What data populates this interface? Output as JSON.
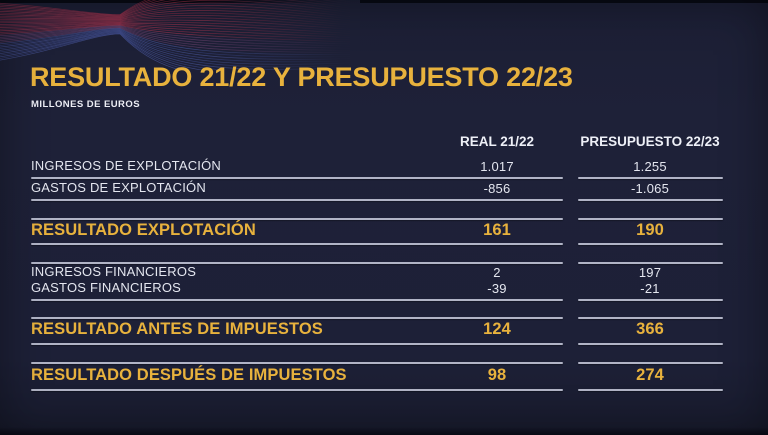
{
  "slide": {
    "title": "RESULTADO 21/22 Y PRESUPUESTO 22/23",
    "subtitle": "MILLONES DE EUROS"
  },
  "table": {
    "columns": [
      {
        "label": "REAL 21/22"
      },
      {
        "label": "PRESUPUESTO 22/23"
      }
    ],
    "rows": [
      {
        "label": "INGRESOS DE EXPLOTACIÓN",
        "real": "1.017",
        "presupuesto": "1.255",
        "type": "normal"
      },
      {
        "label": "GASTOS DE EXPLOTACIÓN",
        "real": "-856",
        "presupuesto": "-1.065",
        "type": "normal"
      },
      {
        "label": "RESULTADO EXPLOTACIÓN",
        "real": "161",
        "presupuesto": "190",
        "type": "result"
      },
      {
        "label": "INGRESOS FINANCIEROS",
        "real": "2",
        "presupuesto": "197",
        "type": "normal"
      },
      {
        "label": "GASTOS FINANCIEROS",
        "real": "-39",
        "presupuesto": "-21",
        "type": "normal"
      },
      {
        "label": "RESULTADO ANTES DE IMPUESTOS",
        "real": "124",
        "presupuesto": "366",
        "type": "result"
      },
      {
        "label": "RESULTADO DESPUÉS DE IMPUESTOS",
        "real": "98",
        "presupuesto": "274",
        "type": "result"
      }
    ]
  },
  "decor": {
    "wave_icon": "wave-mesh-decoration"
  },
  "colors": {
    "background": "#1e2138",
    "gold_accent": "#e8b23d",
    "body_text": "#e4e6ef",
    "rule_lines": "#c6c9da",
    "wave_red": "#c03a55",
    "wave_blue": "#4a5aa8"
  }
}
